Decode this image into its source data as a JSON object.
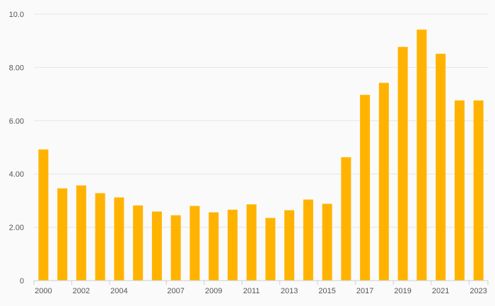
{
  "chart_data": {
    "type": "bar",
    "categories": [
      "2000",
      "2001",
      "2002",
      "2003",
      "2004",
      "2005",
      "2006",
      "2007",
      "2008",
      "2009",
      "2010",
      "2011",
      "2012",
      "2013",
      "2014",
      "2015",
      "2016",
      "2017",
      "2018",
      "2019",
      "2020",
      "2021",
      "2022",
      "2023"
    ],
    "values": [
      4.92,
      3.46,
      3.57,
      3.28,
      3.12,
      2.82,
      2.59,
      2.45,
      2.8,
      2.56,
      2.66,
      2.86,
      2.35,
      2.64,
      3.04,
      2.88,
      4.63,
      6.97,
      7.42,
      8.77,
      9.42,
      8.51,
      6.76,
      6.76
    ],
    "x_tick_labels": [
      "2000",
      "2002",
      "2004",
      "2007",
      "2009",
      "2011",
      "2013",
      "2015",
      "2017",
      "2019",
      "2021",
      "2023"
    ],
    "y_ticks": [
      0,
      2,
      4,
      6,
      8,
      10
    ],
    "y_tick_labels": [
      "0",
      "2.00",
      "4.00",
      "6.00",
      "8.00",
      "10.0"
    ],
    "ylim": [
      0,
      10
    ],
    "grid": true,
    "legend": "none",
    "bar_color": "#ffb300"
  }
}
